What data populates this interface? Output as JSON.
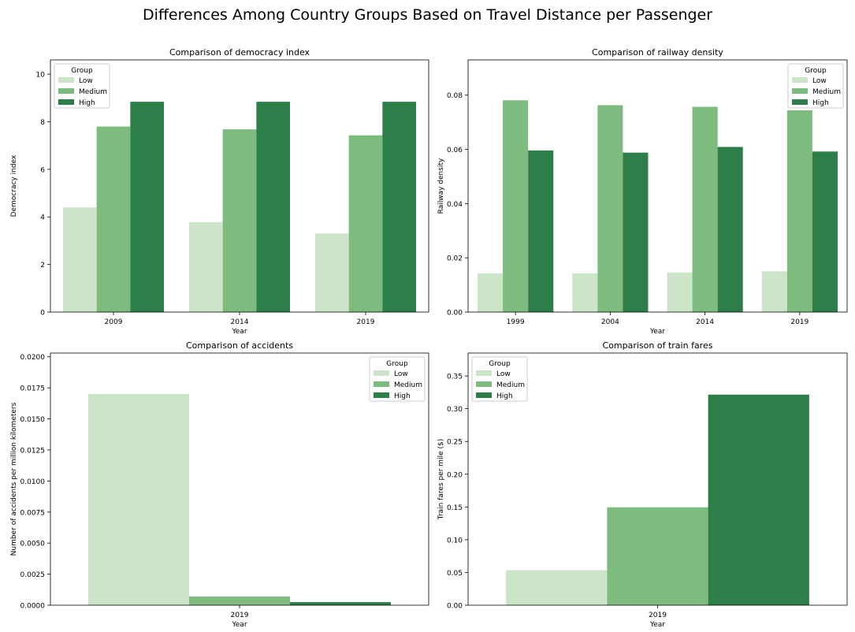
{
  "suptitle": "Differences Among Country Groups Based on Travel Distance per Passenger",
  "colors": {
    "Low": "#cce5c8",
    "Medium": "#7dbb7f",
    "High": "#2e7e4a"
  },
  "chart_data": [
    {
      "type": "bar",
      "title": "Comparison of democracy index",
      "xlabel": "Year",
      "ylabel": "Democracy index",
      "categories": [
        "2009",
        "2014",
        "2019"
      ],
      "ylim": [
        0,
        10.6
      ],
      "yticks": [
        0,
        2,
        4,
        6,
        8,
        10
      ],
      "ytick_labels": [
        "0",
        "2",
        "4",
        "6",
        "8",
        "10"
      ],
      "legend": {
        "title": "Group",
        "placement": "top-left"
      },
      "series": [
        {
          "name": "Low",
          "values": [
            4.4,
            3.78,
            3.3
          ]
        },
        {
          "name": "Medium",
          "values": [
            7.8,
            7.68,
            7.43
          ]
        },
        {
          "name": "High",
          "values": [
            8.84,
            8.84,
            8.84
          ]
        }
      ]
    },
    {
      "type": "bar",
      "title": "Comparison of railway density",
      "xlabel": "Year",
      "ylabel": "Railway density",
      "categories": [
        "1999",
        "2004",
        "2014",
        "2019"
      ],
      "ylim": [
        0,
        0.093
      ],
      "yticks": [
        0,
        0.02,
        0.04,
        0.06,
        0.08
      ],
      "ytick_labels": [
        "0.00",
        "0.02",
        "0.04",
        "0.06",
        "0.08"
      ],
      "legend": {
        "title": "Group",
        "placement": "top-right"
      },
      "series": [
        {
          "name": "Low",
          "values": [
            0.0143,
            0.0143,
            0.0146,
            0.015
          ]
        },
        {
          "name": "Medium",
          "values": [
            0.0781,
            0.0763,
            0.0757,
            0.0744
          ]
        },
        {
          "name": "High",
          "values": [
            0.0596,
            0.0588,
            0.0609,
            0.0592
          ]
        }
      ]
    },
    {
      "type": "bar",
      "title": "Comparison of accidents",
      "xlabel": "Year",
      "ylabel": "Number of accidents per million kilometers",
      "categories": [
        "2019"
      ],
      "ylim": [
        0,
        0.0203
      ],
      "yticks": [
        0,
        0.0025,
        0.005,
        0.0075,
        0.01,
        0.0125,
        0.015,
        0.0175,
        0.02
      ],
      "ytick_labels": [
        "0.0000",
        "0.0025",
        "0.0050",
        "0.0075",
        "0.0100",
        "0.0125",
        "0.0150",
        "0.0175",
        "0.0200"
      ],
      "legend": {
        "title": "Group",
        "placement": "top-right"
      },
      "series": [
        {
          "name": "Low",
          "values": [
            0.017
          ]
        },
        {
          "name": "Medium",
          "values": [
            0.0007
          ]
        },
        {
          "name": "High",
          "values": [
            0.00025
          ]
        }
      ]
    },
    {
      "type": "bar",
      "title": "Comparison of train fares",
      "xlabel": "Year",
      "ylabel": "Train fares per mile ($)",
      "categories": [
        "2019"
      ],
      "ylim": [
        0,
        0.385
      ],
      "yticks": [
        0,
        0.05,
        0.1,
        0.15,
        0.2,
        0.25,
        0.3,
        0.35
      ],
      "ytick_labels": [
        "0.00",
        "0.05",
        "0.10",
        "0.15",
        "0.20",
        "0.25",
        "0.30",
        "0.35"
      ],
      "legend": {
        "title": "Group",
        "placement": "top-left"
      },
      "series": [
        {
          "name": "Low",
          "values": [
            0.0535
          ]
        },
        {
          "name": "Medium",
          "values": [
            0.1495
          ]
        },
        {
          "name": "High",
          "values": [
            0.3215
          ]
        }
      ]
    }
  ]
}
